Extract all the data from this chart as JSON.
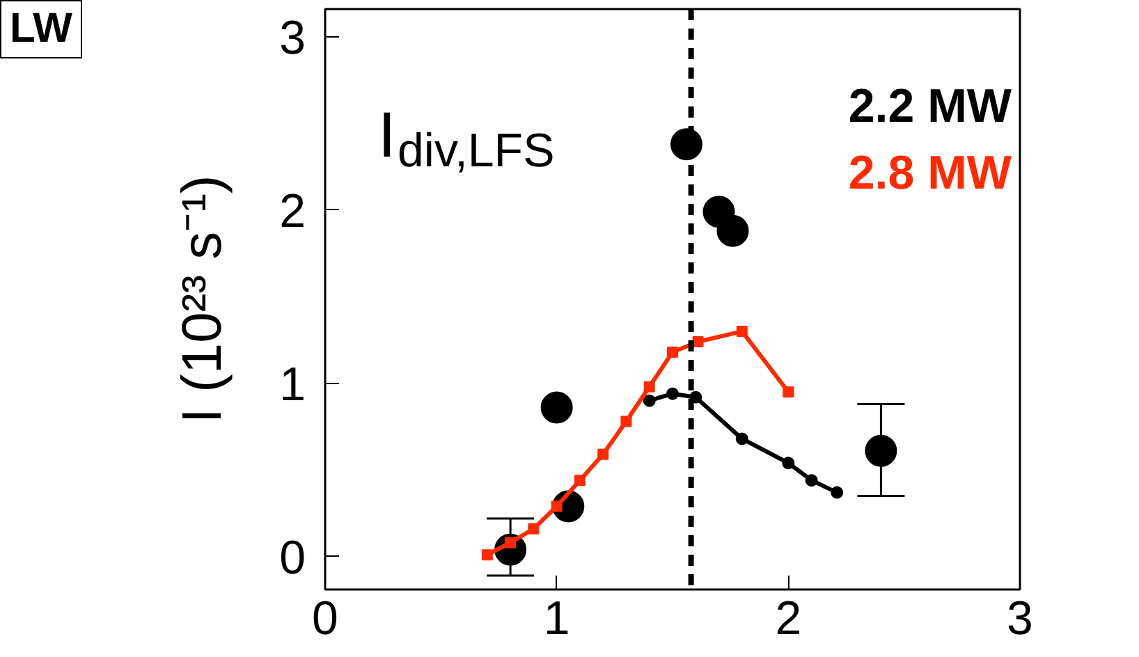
{
  "chart_data": {
    "type": "line",
    "ylabel": "I (10²³ s⁻¹)",
    "annotations": [
      "I$_{div,LFS}$",
      "LW"
    ],
    "xlim": [
      0,
      3
    ],
    "ylim": [
      -0.19,
      3.16
    ],
    "xticks": [
      0,
      1,
      2,
      3
    ],
    "yticks": [
      0,
      1,
      2,
      3
    ],
    "grid": false,
    "marker": "circle",
    "ref_lines": [
      {
        "axis": "x",
        "value": 1.58,
        "label": null,
        "color": "#000000",
        "line_style": "dashed"
      }
    ],
    "series": [
      {
        "color": "#000000",
        "type": "scatter",
        "marker": "circle",
        "x": [
          0.8,
          1.0,
          1.05,
          1.56,
          1.7,
          1.76,
          2.4
        ],
        "values": [
          0.04,
          0.86,
          0.29,
          2.38,
          1.99,
          1.88,
          0.61
        ],
        "errors": [
          [
            -0.11,
            0.22
          ],
          null,
          null,
          null,
          null,
          null,
          [
            0.35,
            0.88
          ]
        ]
      },
      {
        "name": "2.2 MW",
        "color": "#000000",
        "x": [
          1.4,
          1.5,
          1.6,
          1.8,
          2.0,
          2.1,
          2.21
        ],
        "values": [
          0.9,
          0.94,
          0.92,
          0.68,
          0.54,
          0.44,
          0.37
        ]
      },
      {
        "name": "2.8 MW",
        "color": "#ff2a00",
        "marker": "square",
        "x": [
          0.7,
          0.8,
          0.9,
          1.0,
          1.1,
          1.2,
          1.3,
          1.4,
          1.5,
          1.61,
          1.8,
          2.0
        ],
        "values": [
          0.01,
          0.08,
          0.16,
          0.29,
          0.44,
          0.59,
          0.78,
          0.98,
          1.18,
          1.24,
          1.3,
          0.95
        ]
      }
    ]
  }
}
